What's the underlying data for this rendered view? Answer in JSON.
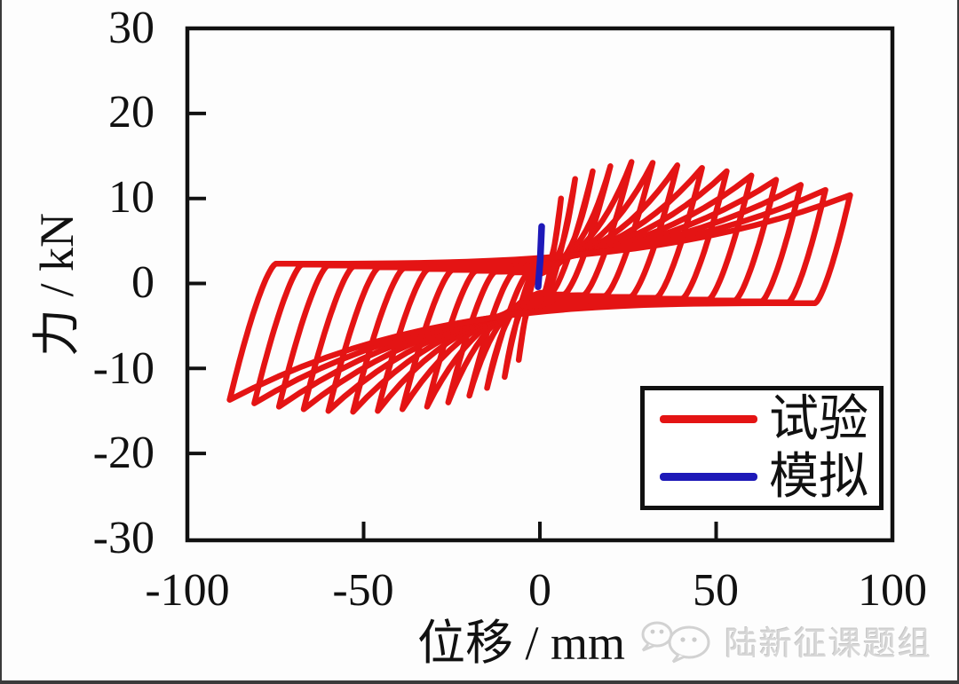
{
  "figure": {
    "background": "#fdfdfd",
    "outer_border_color": "#3b3b3b"
  },
  "chart_data": {
    "type": "line",
    "variant": "cyclic-hysteresis",
    "title": "",
    "xlabel": "位移 / mm",
    "ylabel": "力 / kN",
    "xlim": [
      -100,
      100
    ],
    "ylim": [
      -30,
      30
    ],
    "xticks": [
      "-100",
      "-50",
      "0",
      "50",
      "100"
    ],
    "yticks": [
      "30",
      "20",
      "10",
      "0",
      "-10",
      "-20",
      "-30"
    ],
    "grid": false,
    "axis_color": "#111111",
    "legend_position": "inside lower right",
    "series": [
      {
        "name": "试验",
        "color": "#e41414",
        "style": "hysteresis loops",
        "cycles_format": [
          "amplitude_mm",
          "peak_force_pos_kN",
          "peak_force_neg_kN"
        ],
        "cycles": [
          [
            6,
            10.0,
            9.0
          ],
          [
            10,
            12.3,
            11.0
          ],
          [
            15,
            13.2,
            12.3
          ],
          [
            20,
            13.8,
            13.2
          ],
          [
            26,
            14.3,
            14.0
          ],
          [
            32,
            14.2,
            14.5
          ],
          [
            39,
            13.9,
            14.8
          ],
          [
            46,
            13.6,
            15.0
          ],
          [
            53,
            13.2,
            15.1
          ],
          [
            60,
            12.7,
            15.0
          ],
          [
            67,
            12.2,
            14.8
          ],
          [
            74,
            11.6,
            14.5
          ],
          [
            81,
            11.0,
            14.1
          ],
          [
            88,
            10.4,
            13.7
          ]
        ]
      },
      {
        "name": "模拟",
        "color": "#1e19b8",
        "style": "monotonic segment",
        "points_mm_kN": [
          [
            -0.5,
            -0.4
          ],
          [
            0.1,
            2.8
          ],
          [
            0.5,
            6.7
          ]
        ]
      }
    ]
  },
  "watermark": {
    "text": "陆新征课题组",
    "icon": "wechat-icon",
    "color": "#d7d7d7"
  }
}
